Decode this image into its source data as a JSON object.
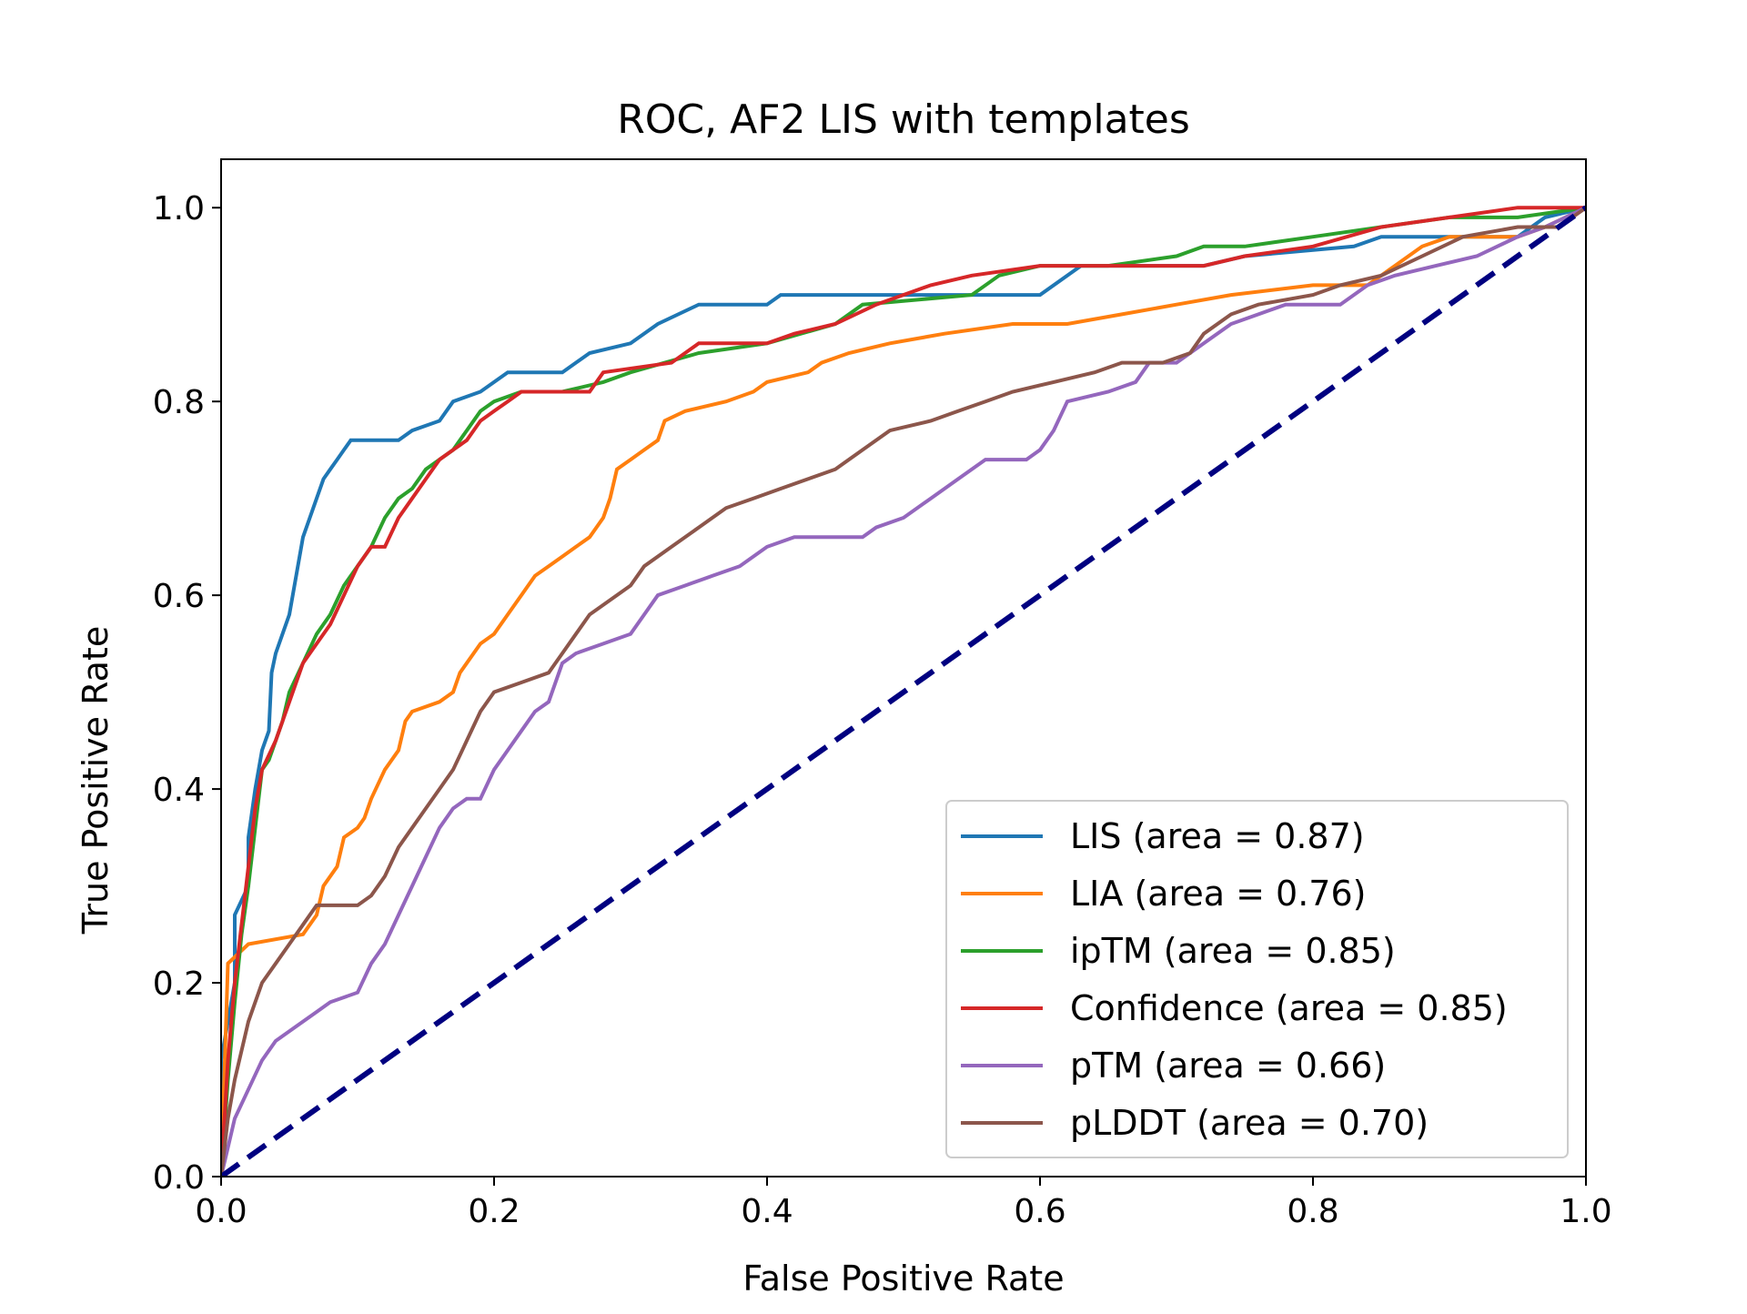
{
  "chart_data": {
    "type": "line",
    "title": "ROC, AF2 LIS with templates",
    "xlabel": "False Positive Rate",
    "ylabel": "True Positive Rate",
    "xlim": [
      0.0,
      1.0
    ],
    "ylim": [
      0.0,
      1.05
    ],
    "xticks": [
      "0.0",
      "0.2",
      "0.4",
      "0.6",
      "0.8",
      "1.0"
    ],
    "yticks": [
      "0.0",
      "0.2",
      "0.4",
      "0.6",
      "0.8",
      "1.0"
    ],
    "grid": false,
    "legend_position": "lower-right",
    "series": [
      {
        "name": "LIS (area = 0.87)",
        "color": "#1f77b4",
        "points": [
          [
            0.0,
            0.0
          ],
          [
            0.0,
            0.12
          ],
          [
            0.01,
            0.2
          ],
          [
            0.01,
            0.27
          ],
          [
            0.02,
            0.3
          ],
          [
            0.02,
            0.35
          ],
          [
            0.025,
            0.4
          ],
          [
            0.03,
            0.44
          ],
          [
            0.035,
            0.46
          ],
          [
            0.037,
            0.52
          ],
          [
            0.04,
            0.54
          ],
          [
            0.045,
            0.56
          ],
          [
            0.05,
            0.58
          ],
          [
            0.055,
            0.62
          ],
          [
            0.06,
            0.66
          ],
          [
            0.065,
            0.68
          ],
          [
            0.07,
            0.7
          ],
          [
            0.075,
            0.72
          ],
          [
            0.08,
            0.73
          ],
          [
            0.085,
            0.74
          ],
          [
            0.09,
            0.75
          ],
          [
            0.095,
            0.76
          ],
          [
            0.13,
            0.76
          ],
          [
            0.14,
            0.77
          ],
          [
            0.16,
            0.78
          ],
          [
            0.17,
            0.8
          ],
          [
            0.19,
            0.81
          ],
          [
            0.21,
            0.83
          ],
          [
            0.25,
            0.83
          ],
          [
            0.27,
            0.85
          ],
          [
            0.3,
            0.86
          ],
          [
            0.32,
            0.88
          ],
          [
            0.35,
            0.9
          ],
          [
            0.4,
            0.9
          ],
          [
            0.41,
            0.91
          ],
          [
            0.6,
            0.91
          ],
          [
            0.63,
            0.94
          ],
          [
            0.72,
            0.94
          ],
          [
            0.75,
            0.95
          ],
          [
            0.83,
            0.96
          ],
          [
            0.85,
            0.97
          ],
          [
            0.95,
            0.97
          ],
          [
            0.97,
            0.99
          ],
          [
            1.0,
            1.0
          ]
        ]
      },
      {
        "name": "LIA (area = 0.76)",
        "color": "#ff7f0e",
        "points": [
          [
            0.0,
            0.0
          ],
          [
            0.005,
            0.22
          ],
          [
            0.02,
            0.24
          ],
          [
            0.06,
            0.25
          ],
          [
            0.07,
            0.27
          ],
          [
            0.075,
            0.3
          ],
          [
            0.085,
            0.32
          ],
          [
            0.09,
            0.35
          ],
          [
            0.1,
            0.36
          ],
          [
            0.105,
            0.37
          ],
          [
            0.11,
            0.39
          ],
          [
            0.12,
            0.42
          ],
          [
            0.13,
            0.44
          ],
          [
            0.135,
            0.47
          ],
          [
            0.14,
            0.48
          ],
          [
            0.16,
            0.49
          ],
          [
            0.17,
            0.5
          ],
          [
            0.175,
            0.52
          ],
          [
            0.18,
            0.53
          ],
          [
            0.19,
            0.55
          ],
          [
            0.2,
            0.56
          ],
          [
            0.21,
            0.58
          ],
          [
            0.22,
            0.6
          ],
          [
            0.23,
            0.62
          ],
          [
            0.24,
            0.63
          ],
          [
            0.25,
            0.64
          ],
          [
            0.26,
            0.65
          ],
          [
            0.27,
            0.66
          ],
          [
            0.28,
            0.68
          ],
          [
            0.285,
            0.7
          ],
          [
            0.29,
            0.73
          ],
          [
            0.3,
            0.74
          ],
          [
            0.31,
            0.75
          ],
          [
            0.32,
            0.76
          ],
          [
            0.325,
            0.78
          ],
          [
            0.34,
            0.79
          ],
          [
            0.37,
            0.8
          ],
          [
            0.39,
            0.81
          ],
          [
            0.4,
            0.82
          ],
          [
            0.43,
            0.83
          ],
          [
            0.44,
            0.84
          ],
          [
            0.46,
            0.85
          ],
          [
            0.49,
            0.86
          ],
          [
            0.53,
            0.87
          ],
          [
            0.58,
            0.88
          ],
          [
            0.62,
            0.88
          ],
          [
            0.66,
            0.89
          ],
          [
            0.7,
            0.9
          ],
          [
            0.74,
            0.91
          ],
          [
            0.8,
            0.92
          ],
          [
            0.84,
            0.92
          ],
          [
            0.86,
            0.94
          ],
          [
            0.88,
            0.96
          ],
          [
            0.9,
            0.97
          ],
          [
            0.95,
            0.97
          ],
          [
            0.97,
            0.98
          ],
          [
            1.0,
            1.0
          ]
        ]
      },
      {
        "name": "ipTM (area = 0.85)",
        "color": "#2ca02c",
        "points": [
          [
            0.0,
            0.0
          ],
          [
            0.005,
            0.1
          ],
          [
            0.01,
            0.18
          ],
          [
            0.015,
            0.25
          ],
          [
            0.02,
            0.3
          ],
          [
            0.025,
            0.36
          ],
          [
            0.03,
            0.42
          ],
          [
            0.035,
            0.43
          ],
          [
            0.04,
            0.45
          ],
          [
            0.045,
            0.47
          ],
          [
            0.05,
            0.5
          ],
          [
            0.06,
            0.53
          ],
          [
            0.07,
            0.56
          ],
          [
            0.08,
            0.58
          ],
          [
            0.09,
            0.61
          ],
          [
            0.1,
            0.63
          ],
          [
            0.11,
            0.65
          ],
          [
            0.12,
            0.68
          ],
          [
            0.13,
            0.7
          ],
          [
            0.14,
            0.71
          ],
          [
            0.15,
            0.73
          ],
          [
            0.17,
            0.75
          ],
          [
            0.18,
            0.77
          ],
          [
            0.19,
            0.79
          ],
          [
            0.2,
            0.8
          ],
          [
            0.22,
            0.81
          ],
          [
            0.25,
            0.81
          ],
          [
            0.28,
            0.82
          ],
          [
            0.3,
            0.83
          ],
          [
            0.35,
            0.85
          ],
          [
            0.4,
            0.86
          ],
          [
            0.45,
            0.88
          ],
          [
            0.47,
            0.9
          ],
          [
            0.55,
            0.91
          ],
          [
            0.57,
            0.93
          ],
          [
            0.6,
            0.94
          ],
          [
            0.65,
            0.94
          ],
          [
            0.7,
            0.95
          ],
          [
            0.72,
            0.96
          ],
          [
            0.75,
            0.96
          ],
          [
            0.8,
            0.97
          ],
          [
            0.85,
            0.98
          ],
          [
            0.9,
            0.99
          ],
          [
            0.95,
            0.99
          ],
          [
            1.0,
            1.0
          ]
        ]
      },
      {
        "name": "Confidence (area = 0.85)",
        "color": "#d62728",
        "points": [
          [
            0.0,
            0.0
          ],
          [
            0.005,
            0.12
          ],
          [
            0.01,
            0.2
          ],
          [
            0.015,
            0.26
          ],
          [
            0.02,
            0.32
          ],
          [
            0.025,
            0.38
          ],
          [
            0.03,
            0.42
          ],
          [
            0.04,
            0.45
          ],
          [
            0.05,
            0.49
          ],
          [
            0.06,
            0.53
          ],
          [
            0.07,
            0.55
          ],
          [
            0.08,
            0.57
          ],
          [
            0.09,
            0.6
          ],
          [
            0.1,
            0.63
          ],
          [
            0.11,
            0.65
          ],
          [
            0.12,
            0.65
          ],
          [
            0.13,
            0.68
          ],
          [
            0.14,
            0.7
          ],
          [
            0.15,
            0.72
          ],
          [
            0.16,
            0.74
          ],
          [
            0.17,
            0.75
          ],
          [
            0.18,
            0.76
          ],
          [
            0.19,
            0.78
          ],
          [
            0.2,
            0.79
          ],
          [
            0.21,
            0.8
          ],
          [
            0.22,
            0.81
          ],
          [
            0.27,
            0.81
          ],
          [
            0.28,
            0.83
          ],
          [
            0.33,
            0.84
          ],
          [
            0.35,
            0.86
          ],
          [
            0.4,
            0.86
          ],
          [
            0.42,
            0.87
          ],
          [
            0.45,
            0.88
          ],
          [
            0.48,
            0.9
          ],
          [
            0.52,
            0.92
          ],
          [
            0.55,
            0.93
          ],
          [
            0.6,
            0.94
          ],
          [
            0.72,
            0.94
          ],
          [
            0.75,
            0.95
          ],
          [
            0.8,
            0.96
          ],
          [
            0.85,
            0.98
          ],
          [
            0.9,
            0.99
          ],
          [
            0.95,
            1.0
          ],
          [
            1.0,
            1.0
          ]
        ]
      },
      {
        "name": "pTM (area = 0.66)",
        "color": "#9467bd",
        "points": [
          [
            0.0,
            0.0
          ],
          [
            0.005,
            0.03
          ],
          [
            0.01,
            0.06
          ],
          [
            0.02,
            0.09
          ],
          [
            0.03,
            0.12
          ],
          [
            0.04,
            0.14
          ],
          [
            0.05,
            0.15
          ],
          [
            0.06,
            0.16
          ],
          [
            0.07,
            0.17
          ],
          [
            0.08,
            0.18
          ],
          [
            0.1,
            0.19
          ],
          [
            0.11,
            0.22
          ],
          [
            0.12,
            0.24
          ],
          [
            0.13,
            0.27
          ],
          [
            0.14,
            0.3
          ],
          [
            0.15,
            0.33
          ],
          [
            0.16,
            0.36
          ],
          [
            0.17,
            0.38
          ],
          [
            0.18,
            0.39
          ],
          [
            0.19,
            0.39
          ],
          [
            0.2,
            0.42
          ],
          [
            0.21,
            0.44
          ],
          [
            0.22,
            0.46
          ],
          [
            0.23,
            0.48
          ],
          [
            0.24,
            0.49
          ],
          [
            0.25,
            0.53
          ],
          [
            0.26,
            0.54
          ],
          [
            0.28,
            0.55
          ],
          [
            0.3,
            0.56
          ],
          [
            0.31,
            0.58
          ],
          [
            0.32,
            0.6
          ],
          [
            0.34,
            0.61
          ],
          [
            0.36,
            0.62
          ],
          [
            0.38,
            0.63
          ],
          [
            0.4,
            0.65
          ],
          [
            0.42,
            0.66
          ],
          [
            0.47,
            0.66
          ],
          [
            0.48,
            0.67
          ],
          [
            0.5,
            0.68
          ],
          [
            0.52,
            0.7
          ],
          [
            0.54,
            0.72
          ],
          [
            0.56,
            0.74
          ],
          [
            0.59,
            0.74
          ],
          [
            0.6,
            0.75
          ],
          [
            0.61,
            0.77
          ],
          [
            0.62,
            0.8
          ],
          [
            0.65,
            0.81
          ],
          [
            0.67,
            0.82
          ],
          [
            0.68,
            0.84
          ],
          [
            0.7,
            0.84
          ],
          [
            0.72,
            0.86
          ],
          [
            0.74,
            0.88
          ],
          [
            0.76,
            0.89
          ],
          [
            0.78,
            0.9
          ],
          [
            0.82,
            0.9
          ],
          [
            0.84,
            0.92
          ],
          [
            0.86,
            0.93
          ],
          [
            0.89,
            0.94
          ],
          [
            0.92,
            0.95
          ],
          [
            0.95,
            0.97
          ],
          [
            0.97,
            0.98
          ],
          [
            1.0,
            1.0
          ]
        ]
      },
      {
        "name": "pLDDT (area = 0.70)",
        "color": "#8c564b",
        "points": [
          [
            0.0,
            0.0
          ],
          [
            0.005,
            0.06
          ],
          [
            0.01,
            0.1
          ],
          [
            0.015,
            0.13
          ],
          [
            0.02,
            0.16
          ],
          [
            0.03,
            0.2
          ],
          [
            0.04,
            0.22
          ],
          [
            0.05,
            0.24
          ],
          [
            0.06,
            0.26
          ],
          [
            0.07,
            0.28
          ],
          [
            0.1,
            0.28
          ],
          [
            0.11,
            0.29
          ],
          [
            0.12,
            0.31
          ],
          [
            0.13,
            0.34
          ],
          [
            0.14,
            0.36
          ],
          [
            0.15,
            0.38
          ],
          [
            0.16,
            0.4
          ],
          [
            0.17,
            0.42
          ],
          [
            0.18,
            0.45
          ],
          [
            0.19,
            0.48
          ],
          [
            0.2,
            0.5
          ],
          [
            0.22,
            0.51
          ],
          [
            0.24,
            0.52
          ],
          [
            0.25,
            0.54
          ],
          [
            0.26,
            0.56
          ],
          [
            0.27,
            0.58
          ],
          [
            0.29,
            0.6
          ],
          [
            0.3,
            0.61
          ],
          [
            0.31,
            0.63
          ],
          [
            0.33,
            0.65
          ],
          [
            0.35,
            0.67
          ],
          [
            0.37,
            0.69
          ],
          [
            0.39,
            0.7
          ],
          [
            0.41,
            0.71
          ],
          [
            0.43,
            0.72
          ],
          [
            0.45,
            0.73
          ],
          [
            0.47,
            0.75
          ],
          [
            0.49,
            0.77
          ],
          [
            0.52,
            0.78
          ],
          [
            0.54,
            0.79
          ],
          [
            0.56,
            0.8
          ],
          [
            0.58,
            0.81
          ],
          [
            0.61,
            0.82
          ],
          [
            0.64,
            0.83
          ],
          [
            0.66,
            0.84
          ],
          [
            0.69,
            0.84
          ],
          [
            0.71,
            0.85
          ],
          [
            0.72,
            0.87
          ],
          [
            0.74,
            0.89
          ],
          [
            0.76,
            0.9
          ],
          [
            0.8,
            0.91
          ],
          [
            0.82,
            0.92
          ],
          [
            0.85,
            0.93
          ],
          [
            0.88,
            0.95
          ],
          [
            0.91,
            0.97
          ],
          [
            0.95,
            0.98
          ],
          [
            0.98,
            0.98
          ],
          [
            1.0,
            1.0
          ]
        ]
      }
    ],
    "reference_line": {
      "color": "#000080",
      "style": "dashed",
      "points": [
        [
          0.0,
          0.0
        ],
        [
          1.0,
          1.0
        ]
      ]
    }
  }
}
